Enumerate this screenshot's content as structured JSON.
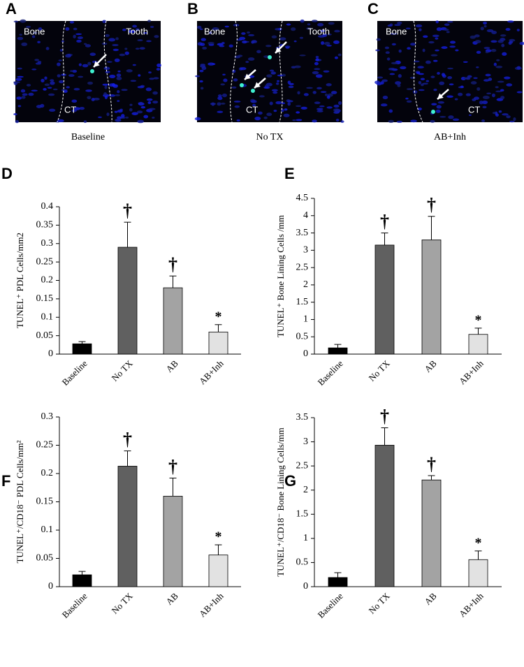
{
  "images": [
    {
      "panel": "A",
      "caption": "Baseline",
      "labels": [
        "Bone",
        "Tooth",
        "CT"
      ]
    },
    {
      "panel": "B",
      "caption": "No TX",
      "labels": [
        "Bone",
        "Tooth",
        "CT"
      ]
    },
    {
      "panel": "C",
      "caption": "AB+Inh",
      "labels": [
        "Bone",
        "CT"
      ]
    }
  ],
  "chart_data": [
    {
      "type": "bar",
      "panel": "D",
      "y_label": "TUNEL⁺ PDL Cells/mm2",
      "categories": [
        "Baseline",
        "No TX",
        "AB",
        "AB+Inh"
      ],
      "values": [
        0.028,
        0.29,
        0.18,
        0.06
      ],
      "errors": [
        0.006,
        0.068,
        0.032,
        0.02
      ],
      "annotations": [
        null,
        "†",
        "†",
        "*"
      ],
      "colors": [
        "#000000",
        "#606060",
        "#a3a3a3",
        "#e2e2e2"
      ],
      "ylim": [
        0,
        0.4
      ],
      "yticks": [
        0,
        0.05,
        0.1,
        0.15,
        0.2,
        0.25,
        0.3,
        0.35,
        0.4
      ]
    },
    {
      "type": "bar",
      "panel": "E",
      "y_label": "TUNEL⁺ Bone Lining Cells /mm",
      "categories": [
        "Baseline",
        "No TX",
        "AB",
        "AB+Inh"
      ],
      "values": [
        0.18,
        3.15,
        3.3,
        0.57
      ],
      "errors": [
        0.1,
        0.35,
        0.68,
        0.18
      ],
      "annotations": [
        null,
        "†",
        "†",
        "*"
      ],
      "colors": [
        "#000000",
        "#606060",
        "#a3a3a3",
        "#e2e2e2"
      ],
      "ylim": [
        0,
        4.5
      ],
      "yticks": [
        0,
        0.5,
        1,
        1.5,
        2,
        2.5,
        3,
        3.5,
        4,
        4.5
      ]
    },
    {
      "type": "bar",
      "panel": "F",
      "y_label": "TUNEL⁺/CD18⁻ PDL Cells/mm²",
      "categories": [
        "Baseline",
        "No TX",
        "AB",
        "AB+Inh"
      ],
      "values": [
        0.021,
        0.213,
        0.16,
        0.056
      ],
      "errors": [
        0.006,
        0.027,
        0.032,
        0.018
      ],
      "annotations": [
        null,
        "†",
        "†",
        "*"
      ],
      "colors": [
        "#000000",
        "#606060",
        "#a3a3a3",
        "#e2e2e2"
      ],
      "ylim": [
        0,
        0.3
      ],
      "yticks": [
        0,
        0.05,
        0.1,
        0.15,
        0.2,
        0.25,
        0.3
      ]
    },
    {
      "type": "bar",
      "panel": "G",
      "y_label": "TUNEL⁺/CD18⁻ Bone Lining Cells/mm",
      "categories": [
        "Baseline",
        "No TX",
        "AB",
        "AB+Inh"
      ],
      "values": [
        0.19,
        2.93,
        2.21,
        0.56
      ],
      "errors": [
        0.1,
        0.36,
        0.09,
        0.18
      ],
      "annotations": [
        null,
        "†",
        "†",
        "*"
      ],
      "colors": [
        "#000000",
        "#606060",
        "#a3a3a3",
        "#e2e2e2"
      ],
      "ylim": [
        0,
        3.5
      ],
      "yticks": [
        0,
        0.5,
        1,
        1.5,
        2,
        2.5,
        3,
        3.5
      ]
    }
  ]
}
